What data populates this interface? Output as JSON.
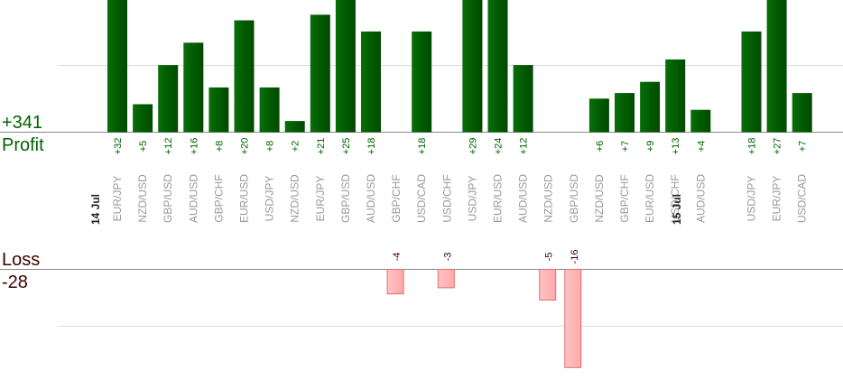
{
  "profit_panel": {
    "total": "+341",
    "label": "Profit"
  },
  "loss_panel": {
    "label": "Loss",
    "total": "-28"
  },
  "colors": {
    "profit_bar": "#006400",
    "profit_bar_light": "#1a8a1a",
    "profit_text": "#006400",
    "loss_bar": "#ffb6b6",
    "loss_bar_stroke": "#e07070",
    "loss_text": "#3a0000",
    "pair_text": "#999999",
    "date_text": "#222222",
    "axis_line": "#888888",
    "grid_line": "#dddddd"
  },
  "chart_data": {
    "type": "bar",
    "profit_gridline": 12,
    "loss_gridline": -10,
    "dates": [
      {
        "label": "14 Jul",
        "before_index": 0
      },
      {
        "label": "15 Jul",
        "before_index": 24
      }
    ],
    "trades": [
      {
        "pair": "EUR/JPY",
        "value": 32
      },
      {
        "pair": "NZD/USD",
        "value": 5
      },
      {
        "pair": "GBP/USD",
        "value": 12
      },
      {
        "pair": "AUD/USD",
        "value": 16
      },
      {
        "pair": "GBP/CHF",
        "value": 8
      },
      {
        "pair": "EUR/USD",
        "value": 20
      },
      {
        "pair": "USD/JPY",
        "value": 8
      },
      {
        "pair": "NZD/USD",
        "value": 2
      },
      {
        "pair": "EUR/JPY",
        "value": 21
      },
      {
        "pair": "GBP/USD",
        "value": 25
      },
      {
        "pair": "AUD/USD",
        "value": 18
      },
      {
        "pair": "GBP/CHF",
        "value": -4
      },
      {
        "pair": "USD/CAD",
        "value": 18
      },
      {
        "pair": "USD/CHF",
        "value": -3
      },
      {
        "pair": "USD/JPY",
        "value": 29
      },
      {
        "pair": "EUR/USD",
        "value": 24
      },
      {
        "pair": "AUD/USD",
        "value": 12
      },
      {
        "pair": "NZD/USD",
        "value": -5
      },
      {
        "pair": "GBP/USD",
        "value": -16
      },
      {
        "pair": "NZD/USD",
        "value": 6
      },
      {
        "pair": "GBP/CHF",
        "value": 7
      },
      {
        "pair": "EUR/USD",
        "value": 9
      },
      {
        "pair": "USD/CHF",
        "value": 13
      },
      {
        "pair": "AUD/USD",
        "value": 4
      },
      {
        "pair": "USD/JPY",
        "value": 18
      },
      {
        "pair": "EUR/JPY",
        "value": 27
      },
      {
        "pair": "USD/CAD",
        "value": 7
      }
    ]
  }
}
